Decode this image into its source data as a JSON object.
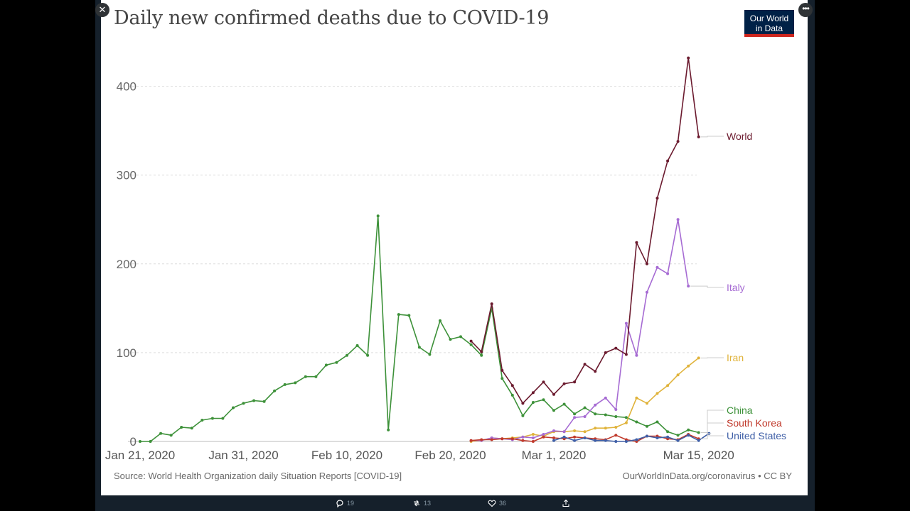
{
  "title": "Daily new confirmed deaths due to COVID-19",
  "logo": {
    "line1": "Our World",
    "line2": "in Data"
  },
  "footer": {
    "source": "Source: World Health Organization daily Situation Reports [COVID-19]",
    "credit": "OurWorldInData.org/coronavirus • CC BY"
  },
  "tweet": {
    "replies": "19",
    "retweets": "13",
    "likes": "36"
  },
  "colors": {
    "World": "#6b1a2e",
    "Italy": "#a66bd3",
    "Iran": "#e0b33b",
    "China": "#3d9139",
    "South Korea": "#c0392b",
    "United States": "#3f5fa7"
  },
  "chart_data": {
    "type": "line",
    "title": "Daily new confirmed deaths due to COVID-19",
    "x_start": "2020-01-21",
    "x_end": "2020-03-16",
    "xticks": [
      "Jan 21, 2020",
      "Jan 31, 2020",
      "Feb 10, 2020",
      "Feb 20, 2020",
      "Mar 1, 2020",
      "Mar 15, 2020"
    ],
    "ylim": [
      0,
      440
    ],
    "yticks": [
      0,
      100,
      200,
      300,
      400
    ],
    "grid": true,
    "series": [
      {
        "name": "China",
        "start": "2020-01-21",
        "values": [
          0,
          0,
          9,
          7,
          16,
          15,
          24,
          26,
          26,
          38,
          43,
          46,
          45,
          57,
          64,
          66,
          73,
          73,
          86,
          89,
          97,
          108,
          97,
          254,
          13,
          143,
          142,
          106,
          98,
          136,
          115,
          118,
          109,
          97,
          150,
          71,
          52,
          29,
          44,
          47,
          35,
          42,
          31,
          38,
          31,
          30,
          28,
          27,
          22,
          17,
          22,
          11,
          7,
          13,
          10
        ]
      },
      {
        "name": "World",
        "start": "2020-02-22",
        "values": [
          113,
          101,
          155,
          80,
          63,
          43,
          55,
          67,
          53,
          65,
          67,
          87,
          79,
          100,
          105,
          98,
          224,
          200,
          274,
          316,
          338,
          432,
          343
        ]
      },
      {
        "name": "Italy",
        "start": "2020-02-22",
        "values": [
          1,
          1,
          4,
          3,
          2,
          5,
          4,
          8,
          12,
          11,
          27,
          28,
          41,
          49,
          36,
          133,
          97,
          168,
          196,
          189,
          250,
          175
        ]
      },
      {
        "name": "Iran",
        "start": "2020-02-22",
        "values": [
          0,
          1,
          4,
          3,
          4,
          5,
          8,
          6,
          11,
          11,
          12,
          11,
          15,
          15,
          16,
          21,
          49,
          43,
          54,
          63,
          75,
          85,
          94
        ]
      },
      {
        "name": "South Korea",
        "start": "2020-02-22",
        "values": [
          1,
          2,
          2,
          3,
          3,
          1,
          0,
          5,
          4,
          3,
          5,
          4,
          3,
          2,
          7,
          2,
          0,
          6,
          6,
          3,
          2,
          8,
          3
        ]
      },
      {
        "name": "United States",
        "start": "2020-03-01",
        "values": [
          1,
          5,
          1,
          4,
          1,
          1,
          0,
          0,
          2,
          6,
          4,
          5,
          1,
          7,
          1,
          9
        ]
      }
    ]
  }
}
